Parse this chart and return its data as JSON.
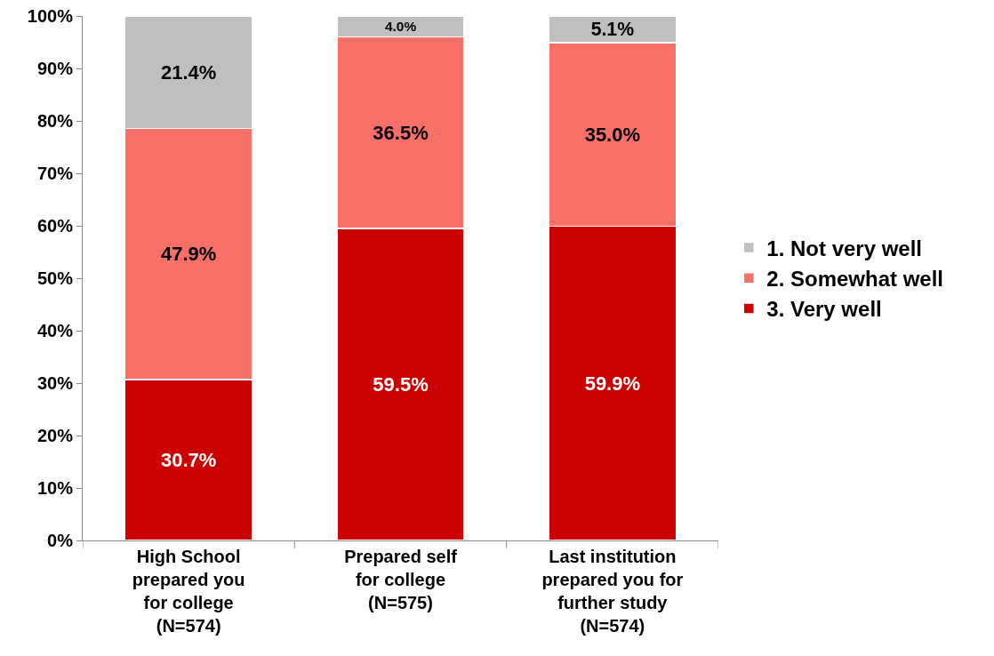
{
  "chart_data": {
    "type": "bar",
    "stacked": true,
    "categories": [
      "High School\nprepared you\nfor college\n(N=574)",
      "Prepared self\nfor college\n(N=575)",
      "Last institution\nprepared you for\nfurther study\n(N=574)"
    ],
    "series": [
      {
        "name": "3. Very well",
        "color": "#cc0000",
        "values": [
          30.7,
          59.5,
          59.9
        ],
        "value_labels": [
          "30.7%",
          "59.5%",
          "59.9%"
        ]
      },
      {
        "name": "2. Somewhat well",
        "color": "#f87068",
        "values": [
          47.9,
          36.5,
          35.0
        ],
        "value_labels": [
          "47.9%",
          "36.5%",
          "35.0%"
        ]
      },
      {
        "name": "1. Not very well",
        "color": "#bfbfbf",
        "values": [
          21.4,
          4.0,
          5.1
        ],
        "value_labels": [
          "21.4%",
          "4.0%",
          "5.1%"
        ]
      }
    ],
    "ylim": [
      0,
      100
    ],
    "yticks": [
      {
        "value": 0,
        "label": "0%"
      },
      {
        "value": 10,
        "label": "10%"
      },
      {
        "value": 20,
        "label": "20%"
      },
      {
        "value": 30,
        "label": "30%"
      },
      {
        "value": 40,
        "label": "40%"
      },
      {
        "value": 50,
        "label": "50%"
      },
      {
        "value": 60,
        "label": "60%"
      },
      {
        "value": 70,
        "label": "70%"
      },
      {
        "value": 80,
        "label": "80%"
      },
      {
        "value": 90,
        "label": "90%"
      },
      {
        "value": 100,
        "label": "100%"
      }
    ],
    "grid": false,
    "legend": "right"
  }
}
